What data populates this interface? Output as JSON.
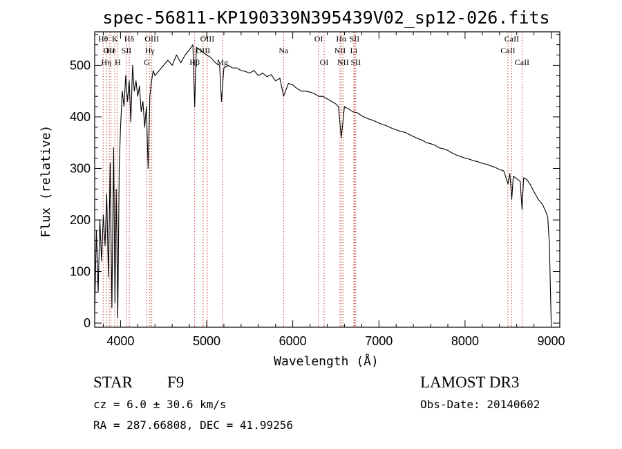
{
  "chart_data": {
    "type": "line",
    "title": "spec-56811-KP190339N395439V02_sp12-026.fits",
    "xlabel": "Wavelength (Å)",
    "ylabel": "Flux (relative)",
    "xlim": [
      3700,
      9100
    ],
    "ylim": [
      -8,
      565
    ],
    "x_ticks": [
      4000,
      5000,
      6000,
      7000,
      8000,
      9000
    ],
    "y_ticks": [
      0,
      100,
      200,
      300,
      400,
      500
    ],
    "series": [
      {
        "name": "flux",
        "x": [
          3700,
          3720,
          3740,
          3760,
          3780,
          3800,
          3820,
          3840,
          3860,
          3880,
          3900,
          3920,
          3935,
          3950,
          3968,
          3985,
          4000,
          4020,
          4040,
          4060,
          4080,
          4101,
          4120,
          4140,
          4160,
          4180,
          4200,
          4220,
          4240,
          4260,
          4280,
          4300,
          4320,
          4340,
          4360,
          4380,
          4400,
          4450,
          4500,
          4550,
          4600,
          4650,
          4700,
          4750,
          4800,
          4840,
          4861,
          4880,
          4920,
          4960,
          5000,
          5050,
          5100,
          5150,
          5172,
          5200,
          5250,
          5300,
          5350,
          5400,
          5450,
          5500,
          5550,
          5600,
          5650,
          5700,
          5750,
          5800,
          5850,
          5893,
          5950,
          6000,
          6050,
          6100,
          6150,
          6200,
          6250,
          6300,
          6350,
          6400,
          6450,
          6500,
          6530,
          6563,
          6600,
          6650,
          6700,
          6750,
          6800,
          6850,
          6900,
          6950,
          7000,
          7050,
          7100,
          7150,
          7200,
          7250,
          7300,
          7350,
          7400,
          7450,
          7500,
          7550,
          7600,
          7650,
          7700,
          7750,
          7800,
          7850,
          7900,
          7950,
          8000,
          8050,
          8100,
          8150,
          8200,
          8250,
          8300,
          8350,
          8400,
          8450,
          8498,
          8520,
          8542,
          8560,
          8600,
          8640,
          8662,
          8680,
          8720,
          8760,
          8800,
          8850,
          8900,
          8940,
          8960,
          8980,
          9000
        ],
        "values": [
          20,
          180,
          60,
          200,
          120,
          210,
          150,
          250,
          90,
          310,
          30,
          340,
          40,
          260,
          10,
          300,
          380,
          450,
          420,
          480,
          430,
          470,
          390,
          500,
          450,
          470,
          440,
          460,
          410,
          430,
          380,
          420,
          300,
          440,
          470,
          490,
          480,
          490,
          500,
          510,
          500,
          520,
          505,
          520,
          530,
          540,
          420,
          535,
          530,
          525,
          520,
          515,
          505,
          500,
          430,
          495,
          500,
          495,
          495,
          490,
          488,
          485,
          490,
          480,
          485,
          478,
          482,
          470,
          475,
          440,
          465,
          462,
          455,
          450,
          450,
          448,
          445,
          440,
          440,
          435,
          430,
          425,
          420,
          360,
          420,
          415,
          410,
          408,
          402,
          398,
          395,
          392,
          388,
          385,
          382,
          378,
          375,
          372,
          370,
          366,
          362,
          358,
          355,
          350,
          348,
          345,
          340,
          338,
          335,
          330,
          326,
          323,
          320,
          318,
          315,
          313,
          310,
          308,
          305,
          302,
          298,
          295,
          270,
          290,
          240,
          285,
          280,
          275,
          220,
          282,
          278,
          268,
          255,
          240,
          230,
          215,
          205,
          150,
          5
        ]
      }
    ],
    "line_markers": [
      {
        "wavelength": 3798,
        "label": "Hθ",
        "row": 1
      },
      {
        "wavelength": 3835,
        "label": "Hη",
        "row": 3
      },
      {
        "wavelength": 3869,
        "label": "OII",
        "row": 2
      },
      {
        "wavelength": 3889,
        "label": "He",
        "row": 2
      },
      {
        "wavelength": 3934,
        "label": "K",
        "row": 1
      },
      {
        "wavelength": 3968,
        "label": "H",
        "row": 3
      },
      {
        "wavelength": 4069,
        "label": "SII",
        "row": 2
      },
      {
        "wavelength": 4101,
        "label": "Hδ",
        "row": 1
      },
      {
        "wavelength": 4304,
        "label": "G",
        "row": 3
      },
      {
        "wavelength": 4340,
        "label": "Hγ",
        "row": 2
      },
      {
        "wavelength": 4363,
        "label": "OIII",
        "row": 1
      },
      {
        "wavelength": 4861,
        "label": "Hβ",
        "row": 3
      },
      {
        "wavelength": 4959,
        "label": "OIII",
        "row": 2
      },
      {
        "wavelength": 5007,
        "label": "OIII",
        "row": 1
      },
      {
        "wavelength": 5183,
        "label": "Mg",
        "row": 3
      },
      {
        "wavelength": 5893,
        "label": "Na",
        "row": 2
      },
      {
        "wavelength": 6300,
        "label": "OI",
        "row": 1
      },
      {
        "wavelength": 6364,
        "label": "OI",
        "row": 3
      },
      {
        "wavelength": 6548,
        "label": "NII",
        "row": 2
      },
      {
        "wavelength": 6563,
        "label": "Hα",
        "row": 1
      },
      {
        "wavelength": 6583,
        "label": "NII",
        "row": 3
      },
      {
        "wavelength": 6708,
        "label": "Li",
        "row": 2
      },
      {
        "wavelength": 6716,
        "label": "SII",
        "row": 1
      },
      {
        "wavelength": 6731,
        "label": "SII",
        "row": 3
      },
      {
        "wavelength": 8498,
        "label": "CaII",
        "row": 2
      },
      {
        "wavelength": 8542,
        "label": "CaII",
        "row": 1
      },
      {
        "wavelength": 8662,
        "label": "CaII",
        "row": 3
      }
    ]
  },
  "info": {
    "class_label": "STAR",
    "subclass": "F9",
    "survey": "LAMOST DR3",
    "cz": "cz = 6.0 ± 30.6 km/s",
    "obs_date": "Obs-Date: 20140602",
    "coords": "RA = 287.66808, DEC =  41.99256"
  }
}
